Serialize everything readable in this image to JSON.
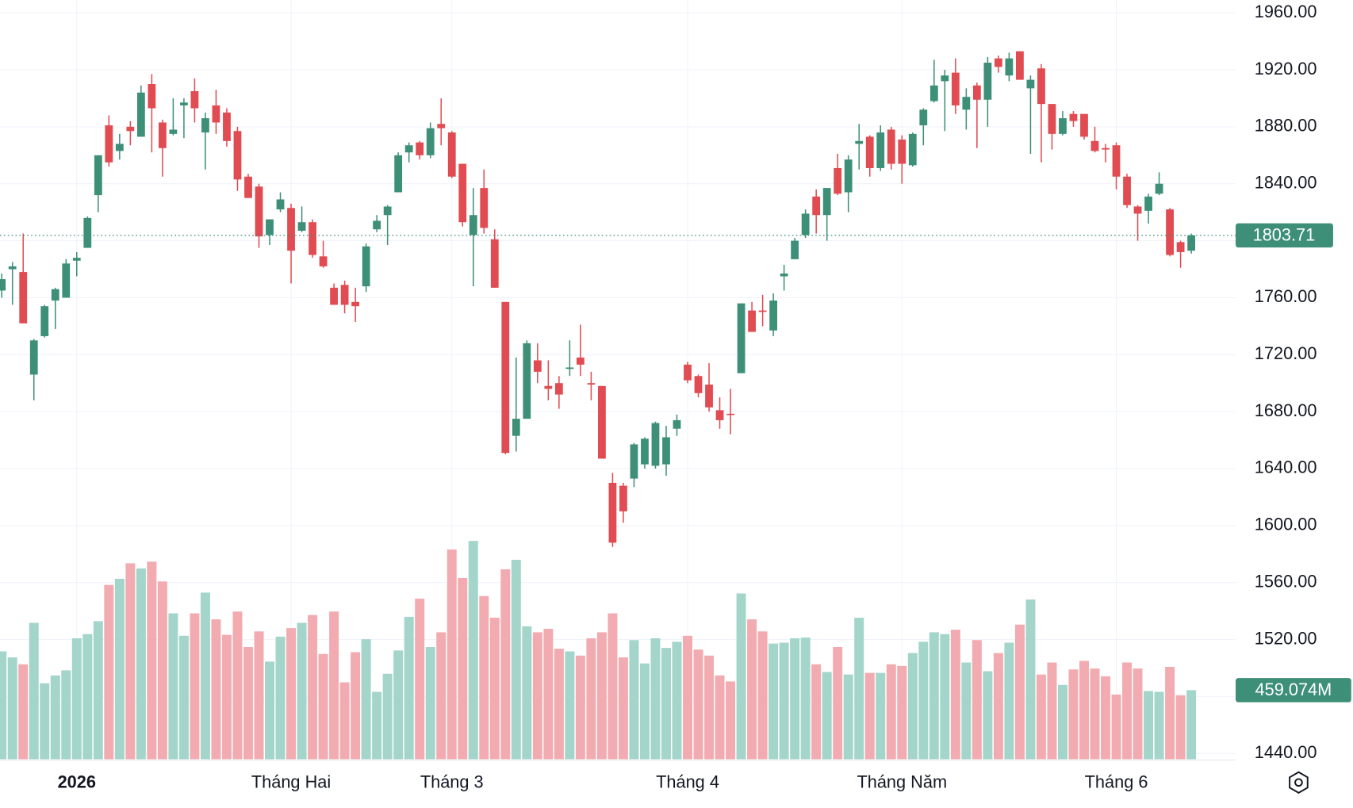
{
  "chart_data": {
    "type": "candlestick",
    "categories": [
      null,
      null,
      null,
      null,
      null,
      null,
      null,
      "2026",
      null,
      null,
      null,
      null,
      null,
      null,
      null,
      null,
      null,
      null,
      null,
      null,
      null,
      null,
      null,
      null,
      null,
      null,
      null,
      "Tháng Hai",
      null,
      null,
      null,
      null,
      null,
      null,
      null,
      null,
      null,
      null,
      null,
      null,
      null,
      null,
      "Tháng 3",
      null,
      null,
      null,
      null,
      null,
      null,
      null,
      null,
      null,
      null,
      null,
      null,
      null,
      null,
      null,
      null,
      null,
      null,
      null,
      null,
      null,
      "Tháng 4",
      null,
      null,
      null,
      null,
      null,
      null,
      null,
      null,
      null,
      null,
      null,
      null,
      null,
      null,
      null,
      null,
      null,
      null,
      null,
      "Tháng Năm",
      null,
      null,
      null,
      null,
      null,
      null,
      null,
      null,
      null,
      null,
      null,
      null,
      null,
      null,
      null,
      null,
      null,
      null,
      null,
      "Tháng 6",
      null,
      null,
      null,
      null,
      null,
      null,
      null
    ],
    "open": [
      1765,
      1780,
      1778,
      1706,
      1733,
      1758,
      1760,
      1786,
      1795,
      1832,
      1881,
      1863,
      1880,
      1873,
      1910,
      1883,
      1875,
      1895,
      1905,
      1876,
      1895,
      1890,
      1877,
      1845,
      1838,
      1804,
      1822,
      1823,
      1807,
      1813,
      1789,
      1767,
      1769,
      1757,
      1768,
      1808,
      1818,
      1834,
      1862,
      1869,
      1860,
      1882,
      1876,
      1854,
      1804,
      1837,
      1801,
      1757,
      1663,
      1675,
      1716,
      1698,
      1700,
      1710,
      1718,
      1700,
      1698,
      1630,
      1628,
      1633,
      1643,
      1642,
      1643,
      1668,
      1713,
      1705,
      1699,
      1681,
      1678.5,
      1707,
      1751,
      1751,
      1737,
      1775,
      1787,
      1804,
      1831,
      1818,
      1851,
      1834,
      1868,
      1873,
      1851,
      1878,
      1871,
      1853,
      1881,
      1898,
      1912,
      1918,
      1892,
      1909,
      1899,
      1928,
      1916,
      1933,
      1907,
      1921,
      1896,
      1875,
      1889,
      1889,
      1870,
      1865,
      1867,
      1845,
      1824,
      1821,
      1833,
      1822,
      1799,
      1793
    ],
    "high": [
      1777,
      1785,
      1805,
      1731,
      1755,
      1767,
      1787,
      1792,
      1817,
      1860,
      1888,
      1875,
      1884,
      1909,
      1917,
      1885,
      1900,
      1900,
      1914,
      1890,
      1906,
      1893,
      1880,
      1847,
      1840,
      1815,
      1834,
      1826,
      1824,
      1815,
      1800,
      1770,
      1772,
      1767,
      1798,
      1818,
      1825,
      1862,
      1869,
      1870,
      1883,
      1900,
      1877,
      1854,
      1837,
      1850,
      1808,
      1757,
      1718,
      1730,
      1728,
      1716,
      1705,
      1730,
      1741,
      1708,
      1698,
      1637,
      1630,
      1658,
      1662,
      1673,
      1670,
      1678,
      1715,
      1706,
      1714,
      1690,
      1696,
      1756,
      1757,
      1762,
      1763,
      1783,
      1802,
      1822,
      1836,
      1837,
      1861,
      1860,
      1882,
      1874,
      1881,
      1880,
      1874,
      1876,
      1893,
      1927,
      1920,
      1928,
      1907,
      1911,
      1929,
      1930,
      1932,
      1933,
      1916,
      1924,
      1896,
      1891,
      1891,
      1889,
      1880,
      1868,
      1869,
      1847,
      1825,
      1833,
      1848,
      1823,
      1800,
      1805
    ],
    "low": [
      1760,
      1755,
      1742,
      1688,
      1732,
      1738,
      1760,
      1775,
      1795,
      1820,
      1852,
      1857,
      1867,
      1873,
      1862,
      1845,
      1874,
      1872,
      1883,
      1850,
      1875,
      1866,
      1835,
      1830,
      1795,
      1797,
      1820,
      1770,
      1806,
      1788,
      1781,
      1755,
      1749,
      1743,
      1764,
      1806,
      1797,
      1834,
      1855,
      1857,
      1858,
      1867,
      1844,
      1810,
      1768,
      1805,
      1767,
      1650,
      1652,
      1675,
      1700,
      1688,
      1682,
      1705,
      1705,
      1688,
      1647,
      1585,
      1602,
      1627,
      1640,
      1640,
      1635,
      1663,
      1700,
      1690,
      1680,
      1668,
      1664,
      1707,
      1736,
      1740,
      1733,
      1765,
      1787,
      1802,
      1805,
      1800,
      1832,
      1820,
      1850,
      1845,
      1849,
      1850,
      1840,
      1852,
      1867,
      1897,
      1877,
      1889,
      1878,
      1865,
      1880,
      1918,
      1912,
      1913,
      1861,
      1855,
      1864,
      1874,
      1880,
      1871,
      1862,
      1855,
      1836,
      1823,
      1800,
      1812,
      1832,
      1789,
      1781,
      1791
    ],
    "close": [
      1773,
      1782,
      1742,
      1730,
      1754,
      1766,
      1784,
      1788,
      1816,
      1860,
      1855,
      1868,
      1877,
      1904,
      1893,
      1865,
      1878,
      1897,
      1893,
      1886,
      1883,
      1870,
      1843,
      1830,
      1803,
      1815,
      1829,
      1793,
      1813,
      1790,
      1782,
      1755,
      1755,
      1754,
      1796,
      1814,
      1824,
      1860,
      1867,
      1860,
      1879,
      1879,
      1845,
      1813,
      1818,
      1809,
      1767,
      1651,
      1675,
      1728,
      1708,
      1696,
      1692,
      1711,
      1713,
      1699,
      1647,
      1588,
      1610,
      1657,
      1661,
      1672,
      1662,
      1674,
      1702,
      1693,
      1683,
      1674,
      1678,
      1756,
      1736,
      1750,
      1758,
      1777,
      1800,
      1819,
      1818,
      1837,
      1833,
      1857,
      1870,
      1851,
      1876,
      1854,
      1854,
      1875,
      1892,
      1909,
      1916,
      1895,
      1901,
      1899,
      1925,
      1922,
      1928,
      1913,
      1913,
      1896,
      1875,
      1886,
      1884,
      1873,
      1863,
      1864,
      1845,
      1825,
      1819,
      1831,
      1840,
      1790,
      1792,
      1803.71
    ],
    "volume": [
      717,
      677,
      631,
      907,
      505,
      557,
      591,
      804,
      832,
      918,
      1159,
      1200,
      1303,
      1269,
      1314,
      1182,
      970,
      821,
      970,
      1108,
      930,
      827,
      982,
      746,
      850,
      649,
      815,
      872,
      907,
      959,
      700,
      982,
      511,
      712,
      798,
      448,
      568,
      723,
      947,
      1068,
      746,
      844,
      1395,
      1205,
      1452,
      1085,
      941,
      1263,
      1326,
      884,
      844,
      867,
      735,
      717,
      689,
      804,
      844,
      970,
      677,
      792,
      637,
      804,
      740,
      781,
      821,
      729,
      689,
      557,
      517,
      1102,
      930,
      850,
      769,
      775,
      804,
      809,
      631,
      580,
      746,
      563,
      941,
      574,
      574,
      631,
      620,
      706,
      781,
      844,
      832,
      861,
      643,
      792,
      585,
      706,
      775,
      895,
      1062,
      563,
      643,
      494,
      597,
      654,
      603,
      551,
      430,
      643,
      603,
      453,
      448,
      614,
      425,
      459.074
    ],
    "volume_label": "459.074M",
    "ylim": [
      1436,
      1969
    ],
    "yticks": [
      {
        "value": 1440,
        "label": "1440.00"
      },
      {
        "value": 1480,
        "label": "1480.00"
      },
      {
        "value": 1520,
        "label": "1520.00"
      },
      {
        "value": 1560,
        "label": "1560.00"
      },
      {
        "value": 1600,
        "label": "1600.00"
      },
      {
        "value": 1640,
        "label": "1640.00"
      },
      {
        "value": 1680,
        "label": "1680.00"
      },
      {
        "value": 1720,
        "label": "1720.00"
      },
      {
        "value": 1760,
        "label": "1760.00"
      },
      {
        "value": 1800,
        "label": "1800.00"
      },
      {
        "value": 1840,
        "label": "1840.00"
      },
      {
        "value": 1880,
        "label": "1880.00"
      },
      {
        "value": 1920,
        "label": "1920.00"
      },
      {
        "value": 1960,
        "label": "1960.00"
      }
    ],
    "volume_ylim": [
      0,
      5050
    ],
    "up_color": "#3d8f78",
    "down_color": "#e14b52",
    "volume_up_color": "#a3d5ca",
    "volume_down_color": "#f2abb0",
    "grid": true,
    "last_price_line": true
  }
}
